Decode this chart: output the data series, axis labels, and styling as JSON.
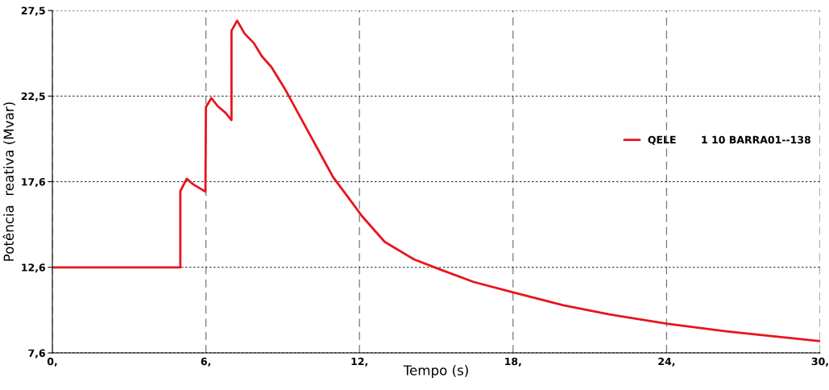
{
  "chart_data": {
    "type": "line",
    "xlabel": "Tempo (s)",
    "ylabel": "Potência  reativa (Mvar)",
    "xlim": [
      0,
      30
    ],
    "ylim": [
      7.6,
      27.5
    ],
    "xticks": [
      {
        "value": 0,
        "label": "0,"
      },
      {
        "value": 6,
        "label": "6,"
      },
      {
        "value": 12,
        "label": "12,"
      },
      {
        "value": 18,
        "label": "18,"
      },
      {
        "value": 24,
        "label": "24,"
      },
      {
        "value": 30,
        "label": "30,"
      }
    ],
    "yticks": [
      {
        "value": 7.6,
        "label": "7,6"
      },
      {
        "value": 12.575,
        "label": "12,6"
      },
      {
        "value": 17.55,
        "label": "17,6"
      },
      {
        "value": 22.525,
        "label": "22,5"
      },
      {
        "value": 27.5,
        "label": "27,5"
      }
    ],
    "grid": true,
    "legend": "right",
    "marker": "none",
    "line_style": "solid",
    "series": [
      {
        "name": "QELE       1 10 BARRA01--138",
        "color": "#e8141c",
        "x": [
          0,
          5.0,
          5.0,
          5.25,
          5.51,
          5.98,
          6.0,
          6.21,
          6.46,
          6.77,
          7.0,
          7.0,
          7.22,
          7.51,
          7.87,
          8.19,
          8.56,
          9.08,
          9.71,
          10.34,
          10.97,
          11.6,
          12.1,
          12.98,
          14.14,
          15.19,
          16.47,
          17.98,
          19.97,
          21.72,
          24.05,
          26.38,
          30
        ],
        "values": [
          12.57,
          12.57,
          17.0,
          17.72,
          17.39,
          16.97,
          21.88,
          22.41,
          21.94,
          21.55,
          21.13,
          26.32,
          26.91,
          26.16,
          25.61,
          24.83,
          24.21,
          22.96,
          21.24,
          19.53,
          17.81,
          16.56,
          15.55,
          14.06,
          13.03,
          12.43,
          11.72,
          11.13,
          10.37,
          9.85,
          9.29,
          8.85,
          8.28
        ]
      }
    ]
  }
}
